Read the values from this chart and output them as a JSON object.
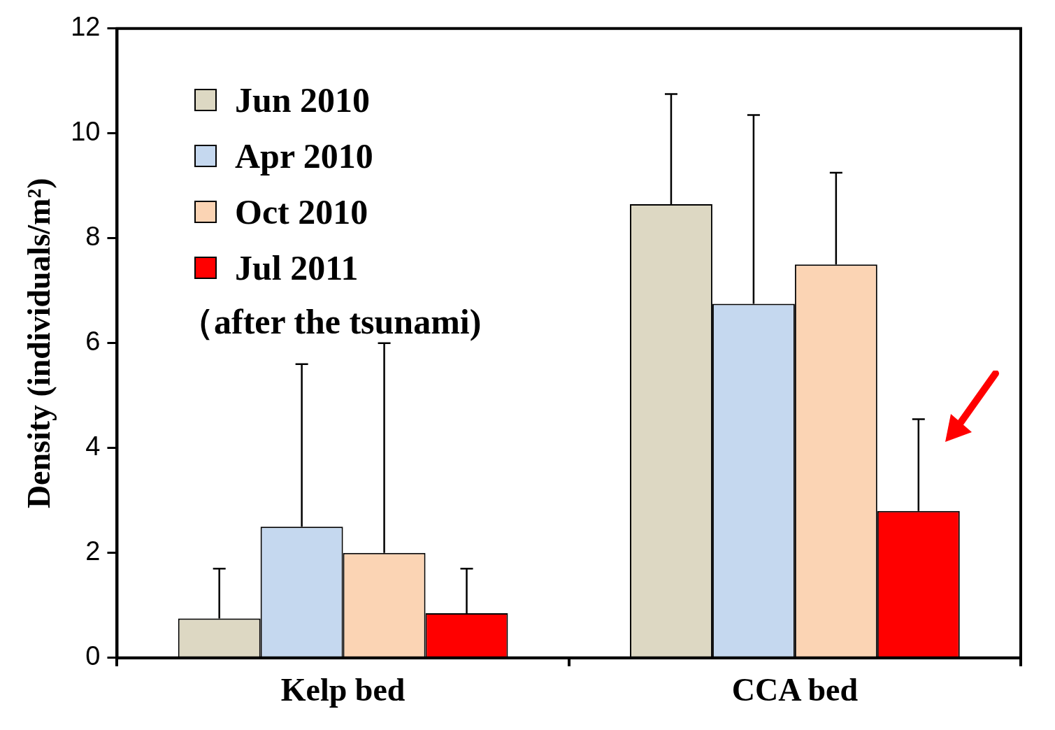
{
  "chart_data": {
    "type": "bar",
    "ylabel": "Density (individuals/m²)",
    "categories": [
      "Kelp bed",
      "CCA bed"
    ],
    "series": [
      {
        "name": "Jun 2010",
        "color": "#ddd8c3",
        "values": [
          0.75,
          8.65
        ],
        "errors": [
          [
            0.75,
            1.7
          ],
          [
            8.65,
            10.75
          ]
        ]
      },
      {
        "name": "Apr 2010",
        "color": "#c5d8ef",
        "values": [
          2.5,
          6.75
        ],
        "errors": [
          [
            2.5,
            5.6
          ],
          [
            6.75,
            10.35
          ]
        ]
      },
      {
        "name": "Oct 2010",
        "color": "#fbd4b4",
        "values": [
          2.0,
          7.5
        ],
        "errors": [
          [
            2.0,
            6.0
          ],
          [
            7.5,
            9.25
          ]
        ]
      },
      {
        "name": "Jul 2011",
        "color": "#ff0000",
        "values": [
          0.85,
          2.8
        ],
        "errors": [
          [
            0.85,
            1.7
          ],
          [
            2.8,
            4.55
          ]
        ]
      }
    ],
    "ylim": [
      0,
      12
    ],
    "yticks": [
      0,
      2,
      4,
      6,
      8,
      10,
      12
    ],
    "grid": false,
    "legend": "top left",
    "annotations": [
      "（after the tsunami)"
    ]
  }
}
